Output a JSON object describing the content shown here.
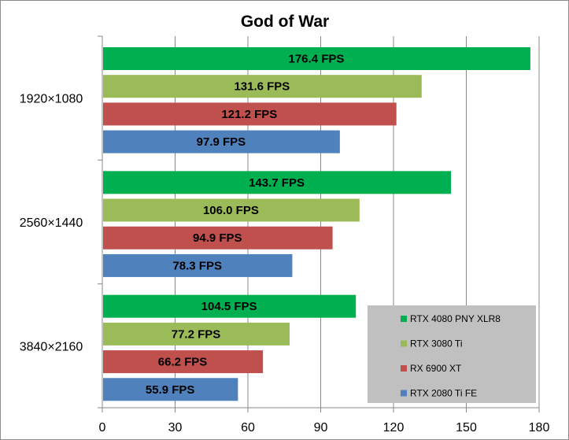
{
  "chart_data": {
    "type": "bar",
    "orientation": "horizontal",
    "title": "God of War",
    "xlabel": "",
    "ylabel": "",
    "categories": [
      "1920×1080",
      "2560×1440",
      "3840×2160"
    ],
    "series": [
      {
        "name": "RTX 4080 PNY XLR8",
        "color": "#00b050",
        "values": [
          176.4,
          143.7,
          104.5
        ],
        "labels": [
          "176.4 FPS",
          "143.7 FPS",
          "104.5 FPS"
        ]
      },
      {
        "name": "RTX 3080 Ti",
        "color": "#9bbb59",
        "values": [
          131.6,
          106.0,
          77.2
        ],
        "labels": [
          "131.6 FPS",
          "106.0 FPS",
          "77.2 FPS"
        ]
      },
      {
        "name": "RX 6900 XT",
        "color": "#c0504d",
        "values": [
          121.2,
          94.9,
          66.2
        ],
        "labels": [
          "121.2 FPS",
          "94.9 FPS",
          "66.2 FPS"
        ]
      },
      {
        "name": "RTX 2080 Ti FE",
        "color": "#4f81bd",
        "values": [
          97.9,
          78.3,
          55.9
        ],
        "labels": [
          "97.9 FPS",
          "78.3 FPS",
          "55.9 FPS"
        ]
      }
    ],
    "xlim": [
      0,
      180
    ],
    "xticks": [
      0,
      30,
      60,
      90,
      120,
      150,
      180
    ],
    "grid": true,
    "legend_position": "bottom-right",
    "legend_background": "#c0c0c0",
    "gridline_color": "#888888"
  }
}
